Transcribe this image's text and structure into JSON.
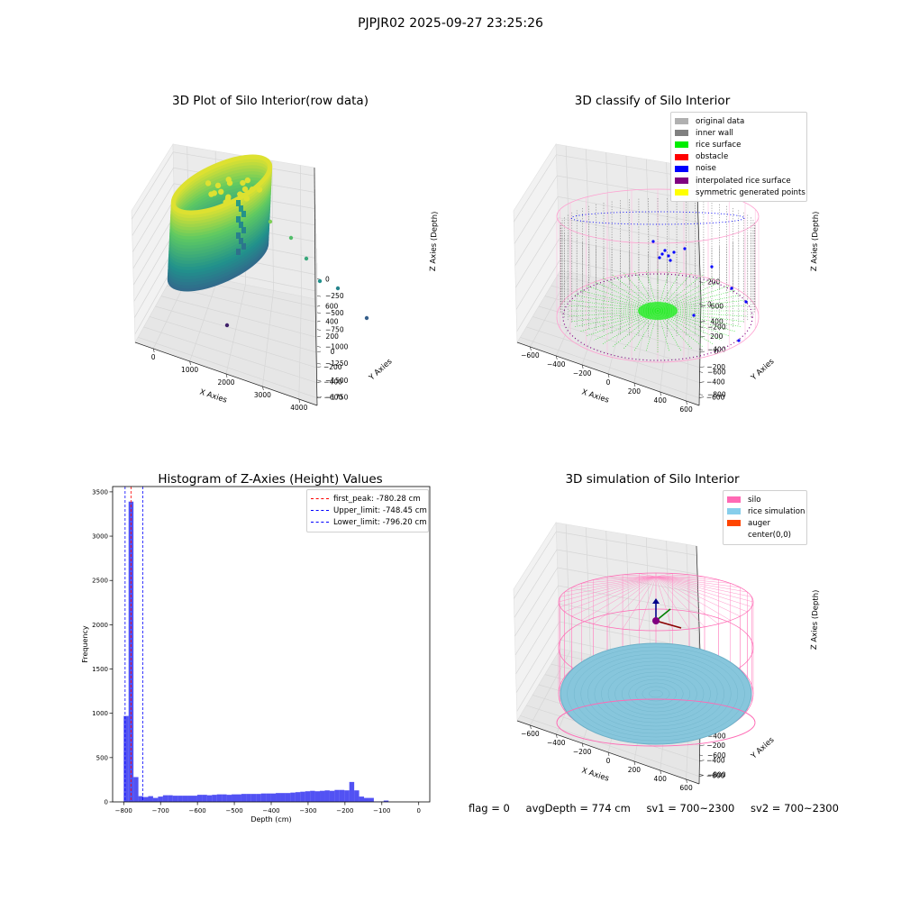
{
  "suptitle": "PJPJR02 2025-09-27 23:25:26",
  "status": {
    "flag": "flag = 0",
    "avg_depth": "avgDepth = 774 cm",
    "sv1": "sv1 = 700~2300",
    "sv2": "sv2 = 700~2300"
  },
  "chart_data": [
    {
      "type": "scatter",
      "title": "3D Plot of Silo Interior(row data)",
      "xlabel": "X Axies",
      "ylabel": "Y Axies",
      "zlabel": "Z Axies (Depth)",
      "x_ticks": [
        "0",
        "1000",
        "2000",
        "3000",
        "4000"
      ],
      "y_ticks": [
        "600",
        "400",
        "200",
        "0",
        "−200",
        "−400",
        "−600"
      ],
      "z_ticks": [
        "0",
        "−250",
        "−500",
        "−750",
        "−1000",
        "−1250",
        "−1500",
        "−1750"
      ],
      "colormap": "viridis",
      "outlier_points": [
        {
          "x": 1900,
          "y": -100,
          "z": -850
        },
        {
          "x": 2200,
          "y": -300,
          "z": -1250
        },
        {
          "x": 2600,
          "y": -400,
          "z": -1500
        },
        {
          "x": 3000,
          "y": -500,
          "z": -1650
        },
        {
          "x": 3800,
          "y": -600,
          "z": -1850
        },
        {
          "x": 800,
          "y": 400,
          "z": -1850
        }
      ]
    },
    {
      "type": "scatter",
      "title": "3D classify of Silo Interior",
      "xlabel": "X Axies",
      "ylabel": "Y Axies",
      "zlabel": "Z Axies (Depth)",
      "x_ticks": [
        "−600",
        "−400",
        "−200",
        "0",
        "200",
        "400",
        "600"
      ],
      "y_ticks": [
        "600",
        "400",
        "200",
        "0",
        "−200",
        "−400",
        "−600"
      ],
      "z_ticks": [
        "200",
        "0",
        "−200",
        "−400",
        "−600",
        "−800"
      ],
      "legend": [
        {
          "label": "original data",
          "color": "#b0b0b0"
        },
        {
          "label": "inner wall",
          "color": "#808080"
        },
        {
          "label": "rice surface",
          "color": "#00ee00"
        },
        {
          "label": "obstacle",
          "color": "#ff0000"
        },
        {
          "label": "noise",
          "color": "#0000ff"
        },
        {
          "label": "interpolated rice surface",
          "color": "#800080"
        },
        {
          "label": "symmetric generated points",
          "color": "#ffff00"
        }
      ]
    },
    {
      "type": "bar",
      "title": "Histogram of Z-Axies (Height) Values",
      "xlabel": "Depth (cm)",
      "ylabel": "Frequency",
      "xlim": [
        -830,
        30
      ],
      "ylim": [
        0,
        3560
      ],
      "x_ticks": [
        -800,
        -700,
        -600,
        -500,
        -400,
        -300,
        -200,
        -100,
        0
      ],
      "y_ticks": [
        0,
        500,
        1000,
        1500,
        2000,
        2500,
        3000,
        3500
      ],
      "bin_width": 13.3,
      "bin_start": -800,
      "values": [
        970,
        3390,
        280,
        65,
        55,
        65,
        45,
        60,
        75,
        75,
        70,
        70,
        70,
        70,
        70,
        80,
        80,
        75,
        80,
        85,
        85,
        80,
        85,
        85,
        90,
        90,
        90,
        90,
        95,
        95,
        95,
        100,
        100,
        100,
        105,
        110,
        115,
        120,
        125,
        120,
        125,
        130,
        125,
        135,
        135,
        130,
        225,
        130,
        60,
        45,
        45,
        5,
        5,
        15
      ],
      "bar_color": "#0000ee",
      "vlines": [
        {
          "label": "first_peak: -780.28 cm",
          "x": -780.28,
          "color": "#ff0000"
        },
        {
          "label": "Upper_limit: -748.45 cm",
          "x": -748.45,
          "color": "#0000ff"
        },
        {
          "label": "Lower_limit: -796.20 cm",
          "x": -796.2,
          "color": "#0000ff"
        }
      ]
    },
    {
      "type": "scatter",
      "title": "3D simulation of Silo Interior",
      "xlabel": "X Axies",
      "ylabel": "Y Axies",
      "zlabel": "Z Axies (Depth)",
      "x_ticks": [
        "−600",
        "−400",
        "−200",
        "0",
        "200",
        "400",
        "600"
      ],
      "y_ticks": [
        "600",
        "400",
        "200",
        "0",
        "−200",
        "−400",
        "−600"
      ],
      "z_ticks": [
        "400",
        "200",
        "0",
        "−200",
        "−400",
        "−600",
        "−800"
      ],
      "legend": [
        {
          "label": "silo",
          "color": "#ff69b4"
        },
        {
          "label": "rice simulation",
          "color": "#87ceeb"
        },
        {
          "label": "auger",
          "color": "#ff4500"
        },
        {
          "label": "center(0,0)",
          "color": "#ffffff"
        }
      ]
    }
  ]
}
